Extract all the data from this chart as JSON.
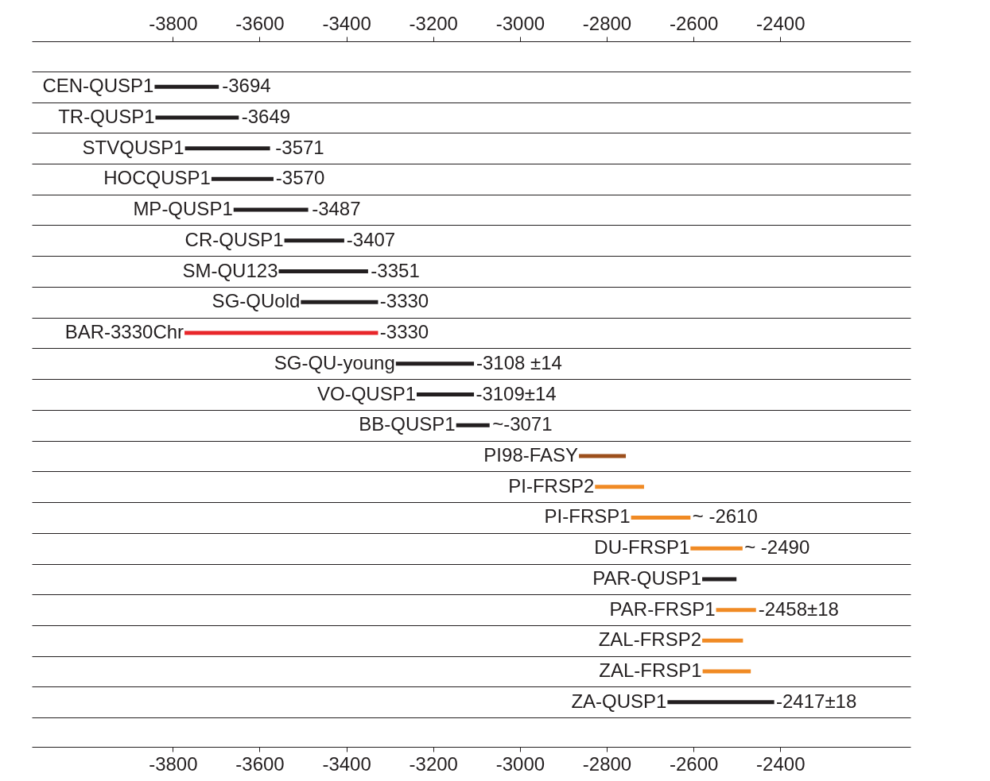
{
  "chart_data": {
    "type": "bar",
    "orientation": "horizontal",
    "categories": [
      "CEN-QUSP1",
      "TR-QUSP1",
      "STVQUSP1",
      "HOCQUSP1",
      "MP-QUSP1",
      "CR-QUSP1",
      "SM-QU123",
      "SG-QUold",
      "BAR-3330Chr",
      "SG-QU-young",
      "VO-QUSP1",
      "BB-QUSP1",
      "PI98-FASY",
      "PI-FRSP2",
      "PI-FRSP1",
      "DU-FRSP1",
      "PAR-QUSP1",
      "PAR-FRSP1",
      "ZAL-FRSP2",
      "ZAL-FRSP1",
      "ZA-QUSP1"
    ],
    "base": [
      -3842,
      -3840,
      -3772,
      -3711,
      -3660,
      -3543,
      -3556,
      -3505,
      -3773,
      -3286,
      -3238,
      -3147,
      -2864,
      -2827,
      -2744,
      -2607,
      -2580,
      -2548,
      -2580,
      -2579,
      -2660
    ],
    "values": [
      148,
      192,
      196,
      143,
      172,
      138,
      206,
      178,
      446,
      180,
      132,
      77,
      108,
      113,
      137,
      120,
      79,
      92,
      94,
      111,
      246
    ],
    "colors": [
      "#231f20",
      "#231f20",
      "#231f20",
      "#231f20",
      "#231f20",
      "#231f20",
      "#231f20",
      "#231f20",
      "#e8262a",
      "#231f20",
      "#231f20",
      "#231f20",
      "#9c4f1c",
      "#f08a24",
      "#f08a24",
      "#f08a24",
      "#231f20",
      "#f08a24",
      "#f08a24",
      "#f08a24",
      "#231f20"
    ],
    "annotations": [
      {
        "text": "-3694",
        "x": -3694,
        "y": "CEN-QUSP1"
      },
      {
        "text": "-3649",
        "x": -3649,
        "y": "TR-QUSP1"
      },
      {
        "text": "-3571",
        "x": -3571,
        "y": "STVQUSP1"
      },
      {
        "text": "-3570",
        "x": -3570,
        "y": "HOCQUSP1"
      },
      {
        "text": "-3487",
        "x": -3487,
        "y": "MP-QUSP1"
      },
      {
        "text": "-3407",
        "x": -3407,
        "y": "CR-QUSP1"
      },
      {
        "text": "-3351",
        "x": -3351,
        "y": "SM-QU123"
      },
      {
        "text": "-3330",
        "x": -3330,
        "y": "SG-QUold"
      },
      {
        "text": "-3330",
        "x": -3330,
        "y": "BAR-3330Chr"
      },
      {
        "text": "-3108 ±14",
        "x": -3108,
        "y": "SG-QU-young"
      },
      {
        "text": "-3109±14",
        "x": -3109,
        "y": "VO-QUSP1"
      },
      {
        "text": "~-3071",
        "x": -3071,
        "y": "BB-QUSP1"
      },
      {
        "text": "~ -2610",
        "x": -2610,
        "y": "PI-FRSP1"
      },
      {
        "text": "~ -2490",
        "x": -2490,
        "y": "DU-FRSP1"
      },
      {
        "text": "-2458±18",
        "x": -2458,
        "y": "PAR-FRSP1"
      },
      {
        "text": "-2417±18",
        "x": -2417,
        "y": "ZA-QUSP1"
      }
    ],
    "xlim": [
      -4125,
      -2100
    ],
    "xticks": [
      -3800,
      -3600,
      -3400,
      -3200,
      -3000,
      -2800,
      -2600,
      -2400
    ],
    "x2lim": [
      -4125,
      -2100
    ],
    "x2ticks": [
      -3800,
      -3600,
      -3400,
      -3200,
      -3000,
      -2800,
      -2600,
      -2400
    ],
    "grid": "y",
    "tick_labels": "x"
  }
}
